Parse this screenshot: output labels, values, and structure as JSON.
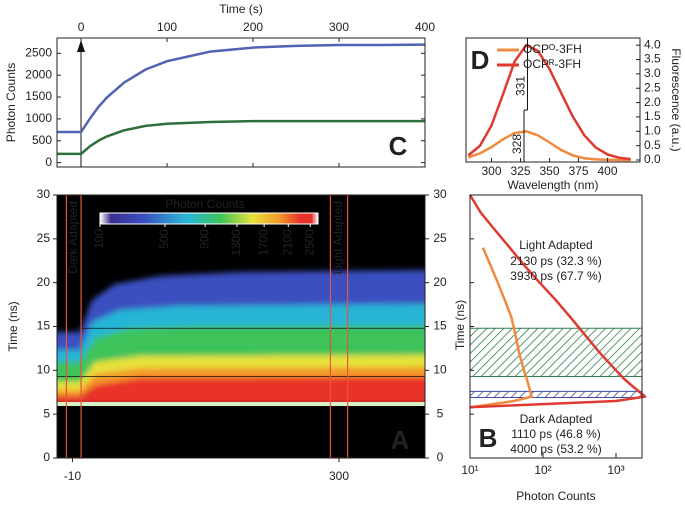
{
  "chart_data": [
    {
      "type": "line",
      "label": "C",
      "xlabel": "Time (s)",
      "ylabel": "Photon Counts",
      "x": [
        -28,
        -10,
        0,
        10,
        20,
        30,
        50,
        75,
        100,
        150,
        200,
        250,
        300,
        350,
        400
      ],
      "series": [
        {
          "color": "#5263b4",
          "values": [
            700,
            700,
            700,
            1000,
            1270,
            1490,
            1830,
            2130,
            2320,
            2540,
            2630,
            2670,
            2690,
            2690,
            2700
          ]
        },
        {
          "color": "#2e6e3e",
          "values": [
            200,
            200,
            200,
            370,
            500,
            600,
            740,
            840,
            890,
            930,
            950,
            950,
            950,
            950,
            950
          ]
        }
      ],
      "xlim": [
        -28,
        400
      ],
      "xticks": [
        0,
        100,
        200,
        300,
        400
      ],
      "ylim": [
        -100,
        2850
      ],
      "yticks": [
        0,
        500,
        1000,
        1500,
        2000,
        2500
      ]
    },
    {
      "type": "line",
      "label": "D",
      "xlabel": "Wavelength (nm)",
      "y2label": "Fluorescence (a.u.)",
      "x": [
        280,
        290,
        300,
        310,
        320,
        330,
        340,
        350,
        360,
        370,
        380,
        390,
        400,
        410,
        420
      ],
      "series": [
        {
          "name": "OCPᴼ-3FH",
          "color": "#f08a3c",
          "axis": "y2",
          "values": [
            0.09,
            0.23,
            0.45,
            0.72,
            0.94,
            1.0,
            0.86,
            0.61,
            0.35,
            0.16,
            0.06,
            0.02,
            0.01,
            0,
            0
          ]
        },
        {
          "name": "OCPᴿ-3FH",
          "color": "#e03a30",
          "axis": "y2",
          "values": [
            0.16,
            0.49,
            1.2,
            2.3,
            3.44,
            4.0,
            3.8,
            3.17,
            2.34,
            1.52,
            0.86,
            0.43,
            0.19,
            0.08,
            0.03
          ]
        }
      ],
      "xlim": [
        278,
        428
      ],
      "xticks": [
        300,
        325,
        350,
        375,
        400
      ],
      "y2lim": [
        -0.07,
        4.25
      ],
      "y2ticks": [
        {
          "value": 0,
          "label": "0.0"
        },
        {
          "value": 0.5,
          "label": "0.5"
        },
        {
          "value": 1,
          "label": "1.0"
        },
        {
          "value": 1.5,
          "label": "1.5"
        },
        {
          "value": 2,
          "label": "2.0"
        },
        {
          "value": 2.5,
          "label": "2.5"
        },
        {
          "value": 3,
          "label": "3.0"
        },
        {
          "value": 3.5,
          "label": "3.5"
        },
        {
          "value": 4,
          "label": "4.0"
        }
      ],
      "legend": "top-right",
      "annotations": [
        {
          "text": "328",
          "x": 328
        },
        {
          "text": "331",
          "x": 331
        }
      ]
    },
    {
      "type": "heatmap",
      "label": "A",
      "ylabel": "Time (ns)",
      "xlim": [
        -28,
        400
      ],
      "xticks": [
        -10,
        300
      ],
      "ylim": [
        0,
        30
      ],
      "yticks": [
        0,
        5,
        10,
        15,
        20,
        25,
        30
      ],
      "colorbar": {
        "title": "Photon Counts",
        "scale": "sqrt",
        "lim": [
          100,
          2650
        ],
        "ticks": [
          100,
          500,
          900,
          1300,
          1700,
          2100,
          2500
        ]
      },
      "regions": [
        {
          "label": "Dark Adapted",
          "from": -17,
          "to": 0
        },
        {
          "label": "Light Adapted",
          "from": 290,
          "to": 310
        }
      ]
    },
    {
      "type": "line",
      "orientation": "horizontal",
      "label": "B",
      "xlabel": "Photon Counts",
      "ylabel": "Time (ns)",
      "y": [
        5.8,
        6.5,
        7,
        8,
        9,
        10,
        12,
        14,
        16,
        18,
        20,
        22,
        24,
        26,
        28,
        30
      ],
      "series": [
        {
          "color": "#f08a3c",
          "values": [
            10,
            40,
            70,
            65,
            60,
            55,
            47,
            42,
            37,
            30,
            24,
            19,
            15,
            null,
            null,
            null
          ]
        },
        {
          "color": "#e03a30",
          "values": [
            10,
            1000,
            2500,
            1800,
            1300,
            1000,
            600,
            380,
            240,
            150,
            90,
            55,
            35,
            22,
            14,
            10
          ]
        }
      ],
      "xscale": "log",
      "xlim": [
        10,
        2270
      ],
      "xticks": [
        {
          "value": 10,
          "label": "10¹"
        },
        {
          "value": 100,
          "label": "10²"
        },
        {
          "value": 1000,
          "label": "10³"
        }
      ],
      "ylim": [
        0,
        30
      ],
      "yticks": [
        0,
        5,
        10,
        15,
        20,
        25,
        30
      ],
      "bands": [
        {
          "from": 9.3,
          "to": 14.8,
          "color": "#2e7d4f"
        },
        {
          "from": 6.9,
          "to": 7.6,
          "color": "#3b4ba8"
        }
      ],
      "annotations": [
        {
          "text": "Light Adapted"
        },
        {
          "text": "2130 ps (32.3 %)"
        },
        {
          "text": "3930 ps (67.7 %)"
        },
        {
          "text": "Dark Adapted"
        },
        {
          "text": "1110 ps (46.8 %)"
        },
        {
          "text": "4000 ps (53.2 %)"
        }
      ]
    }
  ]
}
